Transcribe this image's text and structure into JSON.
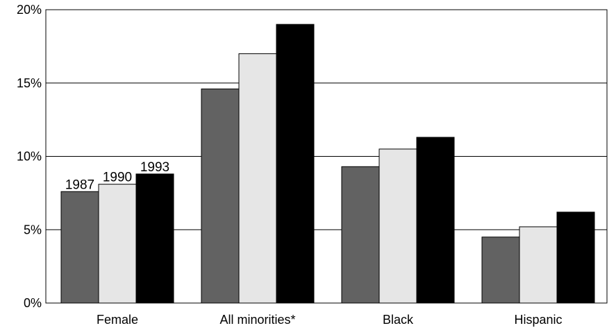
{
  "chart_data": {
    "type": "bar",
    "categories": [
      "Female",
      "All minorities*",
      "Black",
      "Hispanic"
    ],
    "series": [
      {
        "name": "1987",
        "values": [
          7.6,
          14.6,
          9.3,
          4.5
        ],
        "color": "#626262"
      },
      {
        "name": "1990",
        "values": [
          8.1,
          17.0,
          10.5,
          5.2
        ],
        "color": "#e6e6e6"
      },
      {
        "name": "1993",
        "values": [
          8.8,
          19.0,
          11.3,
          6.2
        ],
        "color": "#000000"
      }
    ],
    "ylim": [
      0,
      20
    ],
    "yticks": [
      0,
      5,
      10,
      15,
      20
    ],
    "ytick_labels": [
      "0%",
      "5%",
      "10%",
      "15%",
      "20%"
    ],
    "grid": true,
    "title": "",
    "xlabel": "",
    "ylabel": ""
  }
}
